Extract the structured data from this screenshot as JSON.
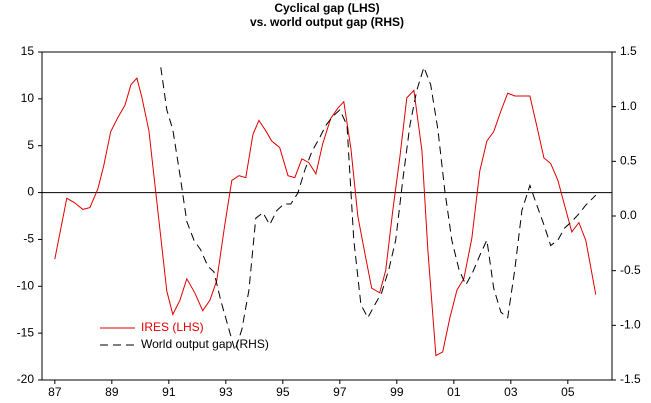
{
  "chart_data": {
    "type": "line",
    "title": "Cyclical gap (LHS)",
    "subtitle": "vs. world output gap (RHS)",
    "xlim": [
      1986.55,
      2006.55
    ],
    "xticks": [
      {
        "value": 1987,
        "label": "87"
      },
      {
        "value": 1989,
        "label": "89"
      },
      {
        "value": 1991,
        "label": "91"
      },
      {
        "value": 1993,
        "label": "93"
      },
      {
        "value": 1995,
        "label": "95"
      },
      {
        "value": 1997,
        "label": "97"
      },
      {
        "value": 1999,
        "label": "99"
      },
      {
        "value": 2001,
        "label": "01"
      },
      {
        "value": 2003,
        "label": "03"
      },
      {
        "value": 2005,
        "label": "05"
      }
    ],
    "ylim": [
      -20,
      15
    ],
    "yticks": [
      15,
      10,
      5,
      0,
      -5,
      -10,
      -15,
      -20
    ],
    "y2lim": [
      -1.5,
      1.5
    ],
    "y2ticks": [
      1.5,
      {
        "value": 1.0,
        "label": "1.0"
      },
      0.5,
      {
        "value": 0.0,
        "label": "0.0"
      },
      -0.5,
      {
        "value": -1.0,
        "label": "-1.0"
      },
      -1.5
    ],
    "zero_line": true,
    "series": [
      {
        "name": "IRES (LHS)",
        "color": "#e00000",
        "dash": false,
        "x": [
          1987.0,
          1987.42,
          1987.7,
          1987.98,
          1988.23,
          1988.51,
          1988.72,
          1988.96,
          1989.21,
          1989.46,
          1989.67,
          1989.88,
          1990.05,
          1990.3,
          1990.93,
          1991.14,
          1991.39,
          1991.63,
          1991.91,
          1992.19,
          1992.44,
          1992.68,
          1992.96,
          1993.21,
          1993.46,
          1993.7,
          1993.95,
          1994.16,
          1994.4,
          1994.61,
          1994.89,
          1995.18,
          1995.42,
          1995.67,
          1995.91,
          1996.16,
          1996.4,
          1996.68,
          1996.93,
          1997.14,
          1997.39,
          1997.63,
          1997.91,
          1998.12,
          1998.4,
          1998.61,
          1998.86,
          1999.11,
          1999.35,
          1999.6,
          1999.88,
          2000.09,
          2000.37,
          2000.61,
          2000.86,
          2001.11,
          2001.35,
          2001.63,
          2001.91,
          2002.16,
          2002.4,
          2002.65,
          2002.89,
          2003.14,
          2003.39,
          2003.67,
          2003.91,
          2004.16,
          2004.4,
          2004.65,
          2004.89,
          2005.14,
          2005.39,
          2005.63,
          2005.98
        ],
        "values": [
          -7.1,
          -0.6,
          -1.1,
          -1.8,
          -1.6,
          0.4,
          2.9,
          6.5,
          8.0,
          9.3,
          11.5,
          12.2,
          10.2,
          6.6,
          -10.5,
          -13,
          -11.5,
          -9.2,
          -10.7,
          -12.6,
          -11.5,
          -9.4,
          -3.5,
          1.3,
          1.8,
          1.6,
          6.2,
          7.7,
          6.6,
          5.5,
          4.8,
          1.8,
          1.6,
          3.6,
          3.2,
          2,
          5.2,
          7.9,
          9,
          9.7,
          4.7,
          -2.5,
          -7,
          -10.2,
          -10.7,
          -8.3,
          -1.9,
          3.9,
          10.1,
          10.9,
          4.5,
          -6.2,
          -17.4,
          -17,
          -13.4,
          -10.4,
          -9.2,
          -4.9,
          2.3,
          5.5,
          6.5,
          8.7,
          10.6,
          10.3,
          10.3,
          10.3,
          7.1,
          3.7,
          3.1,
          1.3,
          -1.4,
          -4.2,
          -3.2,
          -5.1,
          -10.9
        ]
      },
      {
        "name": "World output gap (RHS)",
        "color": "#000000",
        "dash": true,
        "axis": "y2",
        "x": [
          1990.72,
          1990.93,
          1991.14,
          1991.39,
          1991.63,
          1991.88,
          1992.12,
          1992.37,
          1992.58,
          1992.82,
          1993.07,
          1993.32,
          1993.56,
          1993.81,
          1994.05,
          1994.3,
          1994.54,
          1994.79,
          1995.04,
          1995.28,
          1995.53,
          1995.77,
          1996.02,
          1996.26,
          1996.51,
          1996.75,
          1997.0,
          1997.25,
          1997.49,
          1997.74,
          1997.98,
          1998.23,
          1998.47,
          1998.72,
          1998.96,
          1999.21,
          1999.46,
          1999.7,
          1999.95,
          2000.19,
          2000.44,
          2000.68,
          2000.93,
          2001.18,
          2001.42,
          2001.67,
          2001.91,
          2002.16,
          2002.4,
          2002.65,
          2002.89,
          2003.14,
          2003.39,
          2003.67,
          2003.91,
          2004.16,
          2004.4,
          2004.65,
          2004.89,
          2005.14,
          2005.39,
          2005.63,
          2005.98
        ],
        "values": [
          1.36,
          0.97,
          0.79,
          0.38,
          -0.05,
          -0.22,
          -0.31,
          -0.46,
          -0.51,
          -0.77,
          -1.0,
          -1.23,
          -1.04,
          -0.68,
          -0.02,
          0.03,
          -0.08,
          0.05,
          0.11,
          0.11,
          0.21,
          0.42,
          0.59,
          0.7,
          0.83,
          0.91,
          0.97,
          0.83,
          -0.22,
          -0.81,
          -0.93,
          -0.81,
          -0.7,
          -0.49,
          -0.22,
          0.33,
          0.83,
          1.15,
          1.36,
          1.2,
          0.79,
          0.24,
          -0.22,
          -0.49,
          -0.63,
          -0.51,
          -0.36,
          -0.22,
          -0.66,
          -0.88,
          -0.93,
          -0.49,
          0.05,
          0.28,
          0.1,
          -0.08,
          -0.27,
          -0.22,
          -0.11,
          -0.05,
          0.02,
          0.1,
          0.19
        ]
      }
    ]
  }
}
